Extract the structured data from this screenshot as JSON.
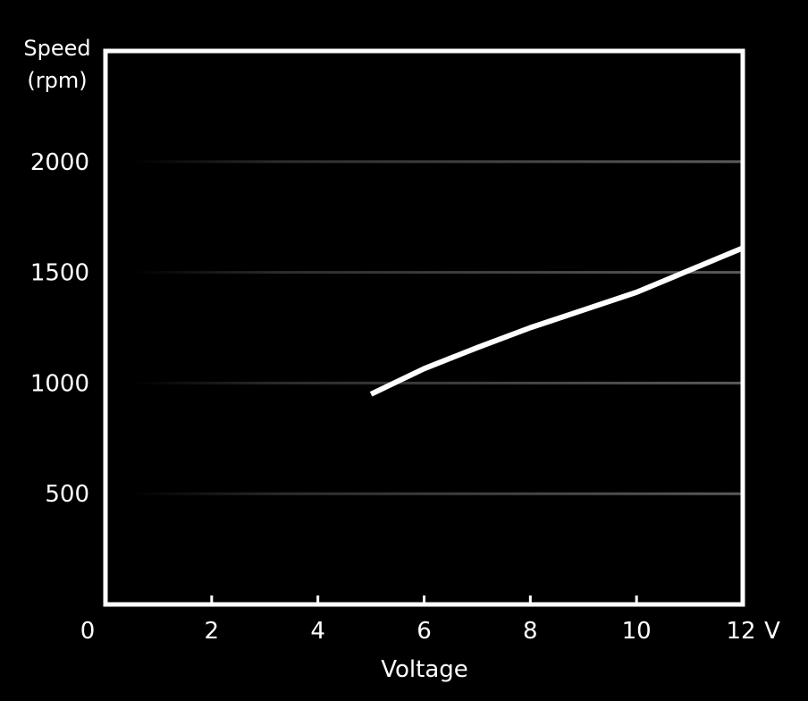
{
  "chart_data": {
    "type": "line",
    "title": "",
    "ylabel_lines": [
      "Speed",
      "(rpm)"
    ],
    "xlabel": "Voltage",
    "x_unit_suffix": "V",
    "x_ticks": [
      0,
      2,
      4,
      6,
      8,
      10,
      12
    ],
    "x_tick_labels": [
      "0",
      "2",
      "4",
      "6",
      "8",
      "10",
      "12"
    ],
    "y_ticks": [
      500,
      1000,
      1500,
      2000
    ],
    "y_tick_labels": [
      "500",
      "1000",
      "1500",
      "2000"
    ],
    "xlim": [
      0,
      12
    ],
    "ylim": [
      0,
      2500
    ],
    "grid": "horizontal",
    "series": [
      {
        "x": [
          5,
          6,
          7,
          8,
          9,
          10,
          11,
          12
        ],
        "y": [
          950,
          1065,
          1160,
          1250,
          1330,
          1410,
          1510,
          1610
        ]
      }
    ],
    "colors": {
      "background": "#000000",
      "axes": "#ffffff",
      "line": "#ffffff",
      "grid": "#5a5a5a"
    }
  }
}
